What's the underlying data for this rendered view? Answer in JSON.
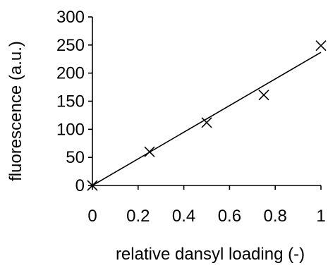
{
  "chart_data": {
    "type": "scatter",
    "title": "",
    "xlabel": "relative dansyl loading (-)",
    "ylabel": "fluorescence (a.u.)",
    "xlim": [
      0,
      1
    ],
    "ylim": [
      0,
      300
    ],
    "xticks": [
      0,
      0.2,
      0.4,
      0.6,
      0.8,
      1
    ],
    "xtick_labels": [
      "0",
      "0.2",
      "0.4",
      "0.6",
      "0.8",
      "1"
    ],
    "yticks": [
      0,
      50,
      100,
      150,
      200,
      250,
      300
    ],
    "ytick_labels": [
      "0",
      "50",
      "100",
      "150",
      "200",
      "250",
      "300"
    ],
    "grid": false,
    "legend": "none",
    "marker": "x",
    "colors": {
      "axis": "#000000",
      "marker": "#000000",
      "line": "#000000"
    },
    "series": [
      {
        "x": [
          0,
          0.25,
          0.5,
          0.75,
          1
        ],
        "y": [
          0,
          60,
          112,
          161,
          249
        ]
      }
    ],
    "fit_line": {
      "type": "linear",
      "x": [
        0,
        1
      ],
      "y": [
        0,
        237
      ]
    }
  }
}
